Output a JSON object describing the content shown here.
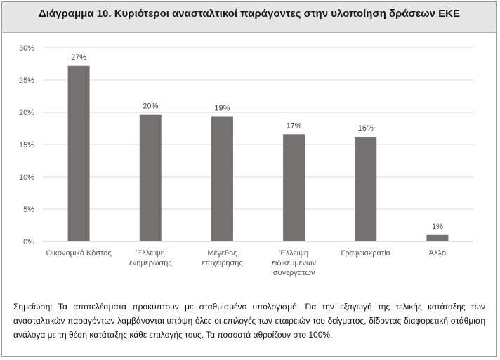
{
  "page": {
    "title": "Διάγραμμα 10. Κυριότεροι ανασταλτικοί παράγοντες στην υλοποίηση δράσεων ΕΚΕ",
    "note": "Σημείωση: Τα αποτελέσματα προκύπτουν με σταθμισμένο υπολογισμό. Για την εξαγωγή της τελικής κατάταξης των ανασταλτικών παραγόντων λαμβάνονται υπόψη όλες οι επιλογές των εταιρειών του δείγματος, δίδοντας διαφορετική στάθμιση ανάλογα με τη θέση κατάταξης κάθε επιλογής τους. Τα ποσοστά αθροίζουν στο 100%."
  },
  "colors": {
    "bar": "#767171",
    "grid": "#d9d9d9",
    "title_bg": "#e6e6e6",
    "text": "#595959"
  },
  "chart_data": {
    "type": "bar",
    "title": "Διάγραμμα 10. Κυριότεροι ανασταλτικοί παράγοντες στην υλοποίηση δράσεων ΕΚΕ",
    "xlabel": "",
    "ylabel": "",
    "ylim": [
      0,
      30
    ],
    "y_ticks": [
      "0%",
      "5%",
      "10%",
      "15%",
      "20%",
      "25%",
      "30%"
    ],
    "grid": true,
    "legend": "none",
    "categories": [
      [
        "Οικονομικό Κόστος"
      ],
      [
        "Έλλειψη",
        "ενημέρωσης"
      ],
      [
        "Μέγεθος",
        "επιχείρησης"
      ],
      [
        "Έλλειψη",
        "ειδικευμένων",
        "συνεργατών"
      ],
      [
        "Γραφειοκρατία"
      ],
      [
        "Άλλο"
      ]
    ],
    "values": [
      27.2,
      19.6,
      19.3,
      16.6,
      16.2,
      1.0
    ],
    "data_labels": [
      "27%",
      "20%",
      "19%",
      "17%",
      "16%",
      "1%"
    ]
  }
}
